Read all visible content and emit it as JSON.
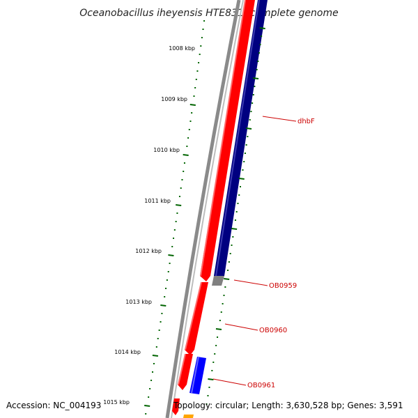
{
  "title": "Oceanobacillus iheyensis HTE831, complete genome",
  "footer": {
    "accession": "Accession: NC_004193",
    "topology": "Topology: circular; Length: 3,630,528 bp; Genes: 3,591"
  },
  "kbp_labels": [
    "1008 kbp",
    "1009 kbp",
    "1010 kbp",
    "1011 kbp",
    "1012 kbp",
    "1013 kbp",
    "1014 kbp",
    "1015 kbp"
  ],
  "gene_labels": [
    "dhbF",
    "OB0959",
    "OB0960",
    "OB0961"
  ],
  "colors": {
    "backbone": "#808080",
    "forward_gene": "#ff0000",
    "reverse_gene": "#000080",
    "reverse_gene_bright": "#0000ff",
    "gray_gene": "#808080",
    "orange_gene": "#ffa500",
    "tick": "#006400",
    "label_line": "#cc0000"
  }
}
